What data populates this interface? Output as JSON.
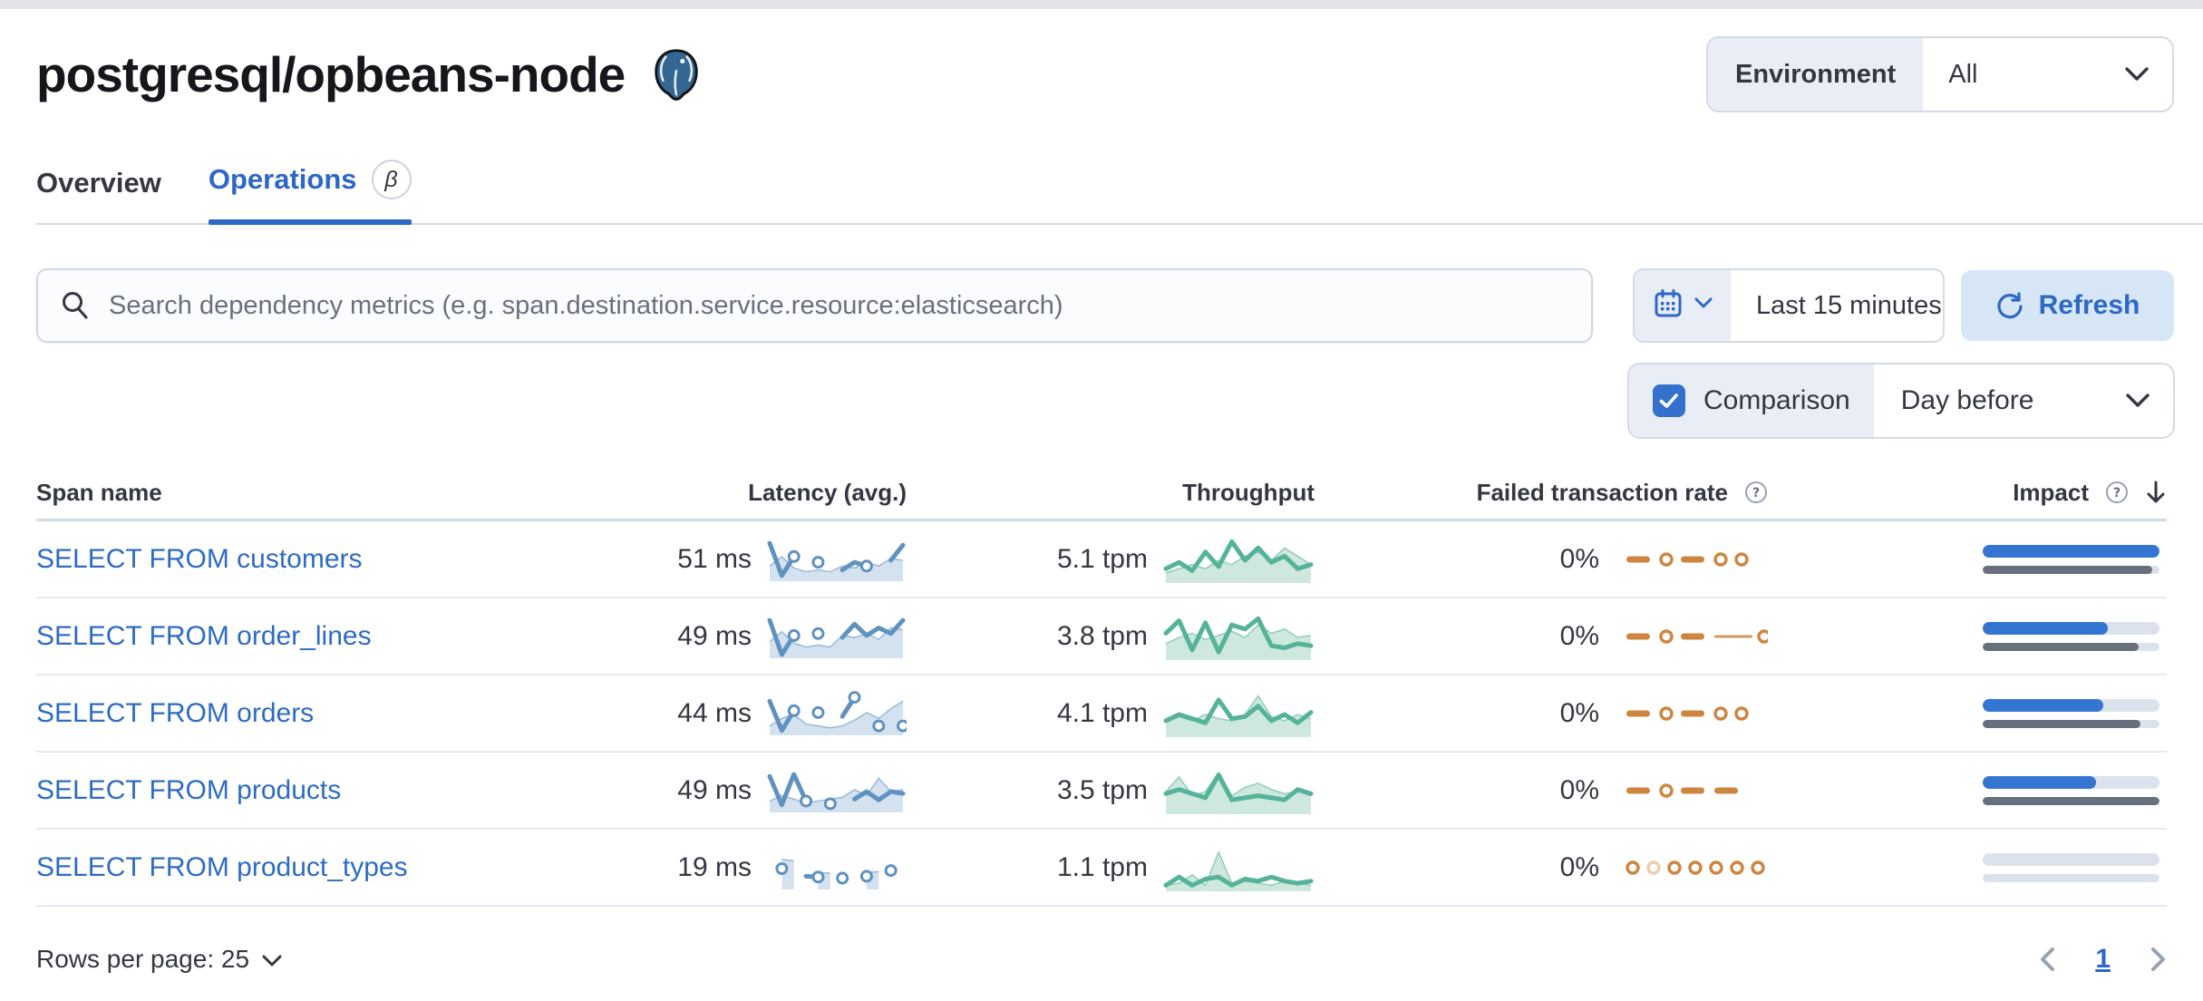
{
  "page": {
    "title": "postgresql/opbeans-node"
  },
  "environment": {
    "label": "Environment",
    "value": "All"
  },
  "tabs": [
    {
      "label": "Overview",
      "active": false
    },
    {
      "label": "Operations",
      "active": true,
      "beta": "β"
    }
  ],
  "search": {
    "placeholder": "Search dependency metrics (e.g. span.destination.service.resource:elasticsearch)"
  },
  "time_picker": {
    "value": "Last 15 minutes"
  },
  "refresh": {
    "label": "Refresh"
  },
  "comparison": {
    "label": "Comparison",
    "checked": true,
    "value": "Day before"
  },
  "table": {
    "columns": {
      "span_name": "Span name",
      "latency": "Latency (avg.)",
      "throughput": "Throughput",
      "failed_rate": "Failed transaction rate",
      "impact": "Impact"
    },
    "rows": [
      {
        "span_name": "SELECT FROM customers",
        "latency": "51 ms",
        "throughput": "5.1 tpm",
        "failed_rate": "0%",
        "impact": {
          "current": 1.0,
          "previous": 0.96
        },
        "latency_spark": {
          "kind": "latency",
          "markers": true,
          "current": [
            0.95,
            0.1,
            0.6,
            null,
            0.45,
            null,
            0.25,
            0.45,
            0.35,
            null,
            0.5,
            0.9
          ],
          "baseline": [
            0.35,
            0.6,
            0.3,
            0.2,
            0.25,
            0.2,
            0.35,
            0.3,
            0.45,
            0.35,
            0.55,
            0.5
          ]
        },
        "throughput_spark": {
          "kind": "throughput",
          "current": [
            0.3,
            0.45,
            0.25,
            0.7,
            0.35,
            0.95,
            0.5,
            0.8,
            0.45,
            0.6,
            0.3,
            0.4
          ],
          "baseline": [
            0.2,
            0.3,
            0.4,
            0.3,
            0.5,
            0.4,
            0.6,
            0.7,
            0.5,
            0.8,
            0.6,
            0.4
          ]
        },
        "failed_spark": {
          "kind": "zero",
          "pattern": [
            {
              "t": "dash"
            },
            {
              "t": "ring"
            },
            {
              "t": "dash"
            },
            {
              "t": "ring"
            },
            {
              "t": "ring"
            }
          ]
        }
      },
      {
        "span_name": "SELECT FROM order_lines",
        "latency": "49 ms",
        "throughput": "3.8 tpm",
        "failed_rate": "0%",
        "impact": {
          "current": 0.71,
          "previous": 0.88
        },
        "latency_spark": {
          "kind": "latency",
          "markers": true,
          "current": [
            0.95,
            0.05,
            0.55,
            null,
            0.6,
            null,
            0.5,
            0.85,
            0.55,
            0.75,
            0.6,
            0.95
          ],
          "baseline": [
            0.4,
            0.65,
            0.35,
            0.25,
            0.3,
            0.25,
            0.55,
            0.5,
            0.6,
            0.45,
            0.75,
            0.7
          ]
        },
        "throughput_spark": {
          "kind": "throughput",
          "current": [
            0.6,
            0.9,
            0.2,
            0.85,
            0.15,
            0.8,
            0.7,
            0.95,
            0.3,
            0.25,
            0.35,
            0.3
          ],
          "baseline": [
            0.35,
            0.5,
            0.6,
            0.45,
            0.55,
            0.65,
            0.5,
            0.8,
            0.6,
            0.7,
            0.5,
            0.55
          ]
        },
        "failed_spark": {
          "kind": "zero",
          "pattern": [
            {
              "t": "dash"
            },
            {
              "t": "ring"
            },
            {
              "t": "dash"
            },
            {
              "t": "line"
            },
            {
              "t": "ring"
            }
          ]
        }
      },
      {
        "span_name": "SELECT FROM orders",
        "latency": "44 ms",
        "throughput": "4.1 tpm",
        "failed_rate": "0%",
        "impact": {
          "current": 0.68,
          "previous": 0.89
        },
        "latency_spark": {
          "kind": "latency",
          "markers": true,
          "current": [
            0.85,
            0.08,
            0.6,
            null,
            0.55,
            null,
            0.45,
            0.95,
            null,
            0.2,
            null,
            0.2
          ],
          "baseline": [
            0.2,
            0.4,
            0.5,
            0.25,
            0.2,
            0.15,
            0.2,
            0.35,
            0.55,
            0.4,
            0.65,
            0.85
          ]
        },
        "throughput_spark": {
          "kind": "throughput",
          "current": [
            0.35,
            0.5,
            0.4,
            0.3,
            0.85,
            0.4,
            0.45,
            0.7,
            0.35,
            0.5,
            0.3,
            0.55
          ],
          "baseline": [
            0.3,
            0.45,
            0.35,
            0.5,
            0.4,
            0.35,
            0.5,
            0.95,
            0.45,
            0.35,
            0.5,
            0.4
          ]
        },
        "failed_spark": {
          "kind": "zero",
          "pattern": [
            {
              "t": "dash"
            },
            {
              "t": "ring"
            },
            {
              "t": "dash"
            },
            {
              "t": "ring"
            },
            {
              "t": "ring"
            }
          ]
        }
      },
      {
        "span_name": "SELECT FROM products",
        "latency": "49 ms",
        "throughput": "3.5 tpm",
        "failed_rate": "0%",
        "impact": {
          "current": 0.64,
          "previous": 1.0
        },
        "latency_spark": {
          "kind": "latency",
          "markers": true,
          "current": [
            0.9,
            0.15,
            0.95,
            0.25,
            null,
            0.18,
            null,
            0.3,
            0.5,
            0.28,
            0.5,
            0.45
          ],
          "baseline": [
            0.25,
            0.4,
            0.3,
            0.2,
            0.25,
            0.3,
            0.35,
            0.55,
            0.4,
            0.85,
            0.5,
            0.55
          ]
        },
        "throughput_spark": {
          "kind": "throughput",
          "current": [
            0.45,
            0.55,
            0.45,
            0.35,
            0.9,
            0.3,
            0.35,
            0.4,
            0.35,
            0.3,
            0.55,
            0.45
          ],
          "baseline": [
            0.5,
            0.85,
            0.4,
            0.5,
            0.95,
            0.4,
            0.6,
            0.7,
            0.55,
            0.45,
            0.5,
            0.4
          ]
        },
        "failed_spark": {
          "kind": "zero",
          "pattern": [
            {
              "t": "dash"
            },
            {
              "t": "ring"
            },
            {
              "t": "dash"
            },
            {
              "t": "dash"
            }
          ]
        }
      },
      {
        "span_name": "SELECT FROM product_types",
        "latency": "19 ms",
        "throughput": "1.1 tpm",
        "failed_rate": "0%",
        "impact": {
          "current": 0.0,
          "previous": 0.0
        },
        "latency_spark": {
          "kind": "latency",
          "markers": true,
          "current": [
            null,
            0.5,
            null,
            0.3,
            0.28,
            null,
            0.25,
            null,
            0.3,
            null,
            0.45,
            null
          ],
          "baseline": [
            null,
            0.75,
            0.7,
            null,
            0.4,
            0.38,
            null,
            null,
            0.4,
            0.42,
            null,
            null
          ]
        },
        "throughput_spark": {
          "kind": "throughput",
          "current": [
            0.1,
            0.3,
            0.1,
            0.25,
            0.3,
            0.1,
            0.25,
            0.2,
            0.3,
            0.2,
            0.15,
            0.2
          ],
          "baseline": [
            0.1,
            0.15,
            0.35,
            0.1,
            0.9,
            0.15,
            0.2,
            0.15,
            0.1,
            0.2,
            0.15,
            0.1
          ]
        },
        "failed_spark": {
          "kind": "zero",
          "pattern": [
            {
              "t": "ring"
            },
            {
              "t": "ring",
              "faded": true
            },
            {
              "t": "ring"
            },
            {
              "t": "ring"
            },
            {
              "t": "ring"
            },
            {
              "t": "ring"
            },
            {
              "t": "ring"
            }
          ]
        }
      }
    ]
  },
  "pagination": {
    "rows_per_page": "Rows per page: 25",
    "page": "1"
  },
  "colors": {
    "accent_blue": "#2d68c4",
    "link_blue": "#2e6bc3",
    "impact_bar": "#3575d2",
    "impact_prev": "#69707d",
    "bar_track": "#dce2ec",
    "latency_line": "#6092c0",
    "latency_fill": "#d4e2f0",
    "throughput_line": "#54b399",
    "throughput_fill": "#cfe8de",
    "failed_line": "#ce8540",
    "refresh_bg": "#d6e6f7",
    "control_label_bg": "#e9edf5",
    "border": "#d3dae6"
  }
}
